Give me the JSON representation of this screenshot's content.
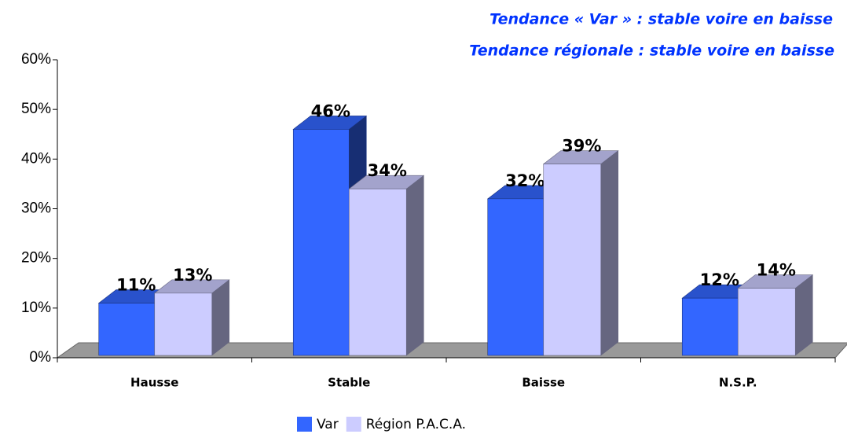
{
  "chart_data": {
    "type": "bar3d",
    "title": "Tendance « Var » : stable voire en baisse",
    "subtitle": "Tendance régionale : stable voire en baisse",
    "categories": [
      "Hausse",
      "Stable",
      "Baisse",
      "N.S.P."
    ],
    "series": [
      {
        "name": "Var",
        "color": "#3366ff",
        "values": [
          11,
          46,
          32,
          12
        ],
        "value_labels": [
          "11%",
          "46%",
          "32%",
          "12%"
        ]
      },
      {
        "name": "Région P.A.C.A.",
        "color": "#ccccff",
        "values": [
          13,
          34,
          39,
          14
        ],
        "value_labels": [
          "13%",
          "34%",
          "39%",
          "14%"
        ]
      }
    ],
    "ylim": [
      0,
      60
    ],
    "yticks": [
      {
        "value": 0,
        "label": "0%"
      },
      {
        "value": 10,
        "label": "10%"
      },
      {
        "value": 20,
        "label": "20%"
      },
      {
        "value": 30,
        "label": "30%"
      },
      {
        "value": 40,
        "label": "40%"
      },
      {
        "value": 50,
        "label": "50%"
      },
      {
        "value": 60,
        "label": "60%"
      }
    ],
    "legend": "bottom"
  }
}
